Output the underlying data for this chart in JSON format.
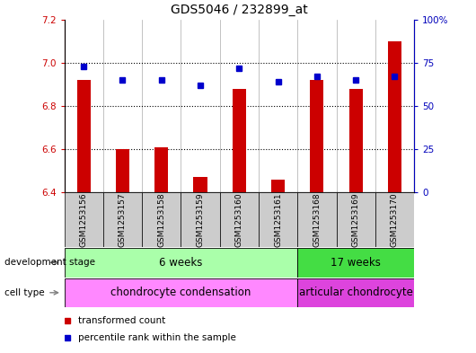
{
  "title": "GDS5046 / 232899_at",
  "samples": [
    "GSM1253156",
    "GSM1253157",
    "GSM1253158",
    "GSM1253159",
    "GSM1253160",
    "GSM1253161",
    "GSM1253168",
    "GSM1253169",
    "GSM1253170"
  ],
  "bar_values": [
    6.92,
    6.6,
    6.61,
    6.47,
    6.88,
    6.46,
    6.92,
    6.88,
    7.1
  ],
  "bar_base": 6.4,
  "percentile_values": [
    73,
    65,
    65,
    62,
    72,
    64,
    67,
    65,
    67
  ],
  "ylim_left": [
    6.4,
    7.2
  ],
  "ylim_right": [
    0,
    100
  ],
  "yticks_left": [
    6.4,
    6.6,
    6.8,
    7.0,
    7.2
  ],
  "yticks_right": [
    0,
    25,
    50,
    75,
    100
  ],
  "yticklabels_right": [
    "0",
    "25",
    "50",
    "75",
    "100%"
  ],
  "bar_color": "#cc0000",
  "dot_color": "#0000cc",
  "dev_stage_6w": "6 weeks",
  "dev_stage_17w": "17 weeks",
  "cell_type_chondro": "chondrocyte condensation",
  "cell_type_articular": "articular chondrocyte",
  "dev_stage_color_6w": "#aaffaa",
  "dev_stage_color_17w": "#44dd44",
  "cell_type_color_chondro": "#ff88ff",
  "cell_type_color_articular": "#dd44dd",
  "legend_bar_label": "transformed count",
  "legend_dot_label": "percentile rank within the sample",
  "group1_count": 6,
  "group2_count": 3,
  "title_fontsize": 10,
  "tick_fontsize": 7.5,
  "label_fontsize": 8.5,
  "sample_label_fontsize": 6.5
}
